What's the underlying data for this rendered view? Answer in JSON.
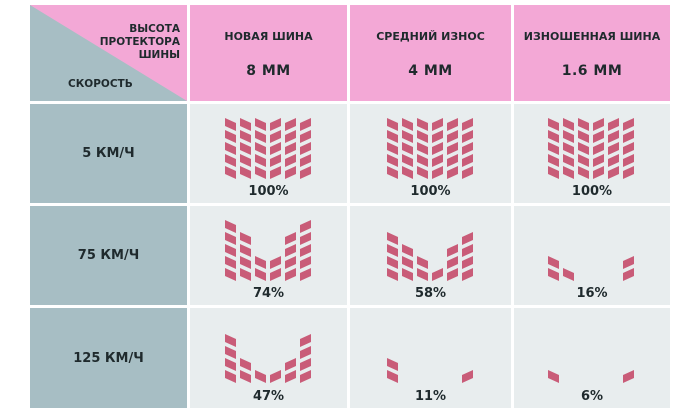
{
  "corner": {
    "top_label_lines": [
      "ВЫСОТА",
      "ПРОТЕКТОРА",
      "ШИНЫ"
    ],
    "bottom_label": "СКОРОСТЬ"
  },
  "columns": [
    {
      "label": "НОВАЯ ШИНА",
      "depth": "8 ММ"
    },
    {
      "label": "СРЕДНИЙ ИЗНОС",
      "depth": "4 ММ"
    },
    {
      "label": "ИЗНОШЕННАЯ ШИНА",
      "depth": "1.6 ММ"
    }
  ],
  "rows": [
    {
      "speed": "5 КМ/Ч",
      "values": [
        "100%",
        "100%",
        "100%"
      ]
    },
    {
      "speed": "75 КМ/Ч",
      "values": [
        "74%",
        "58%",
        "16%"
      ]
    },
    {
      "speed": "125 КМ/Ч",
      "values": [
        "47%",
        "11%",
        "6%"
      ]
    }
  ],
  "contact_fraction": [
    [
      1.0,
      1.0,
      1.0
    ],
    [
      0.74,
      0.58,
      0.16
    ],
    [
      0.47,
      0.11,
      0.06
    ]
  ],
  "colors": {
    "header": "#f3a8d6",
    "row_header": "#a7bec4",
    "cell": "#e8edee",
    "tread": "#c95c78",
    "text": "#1f2a2d"
  }
}
